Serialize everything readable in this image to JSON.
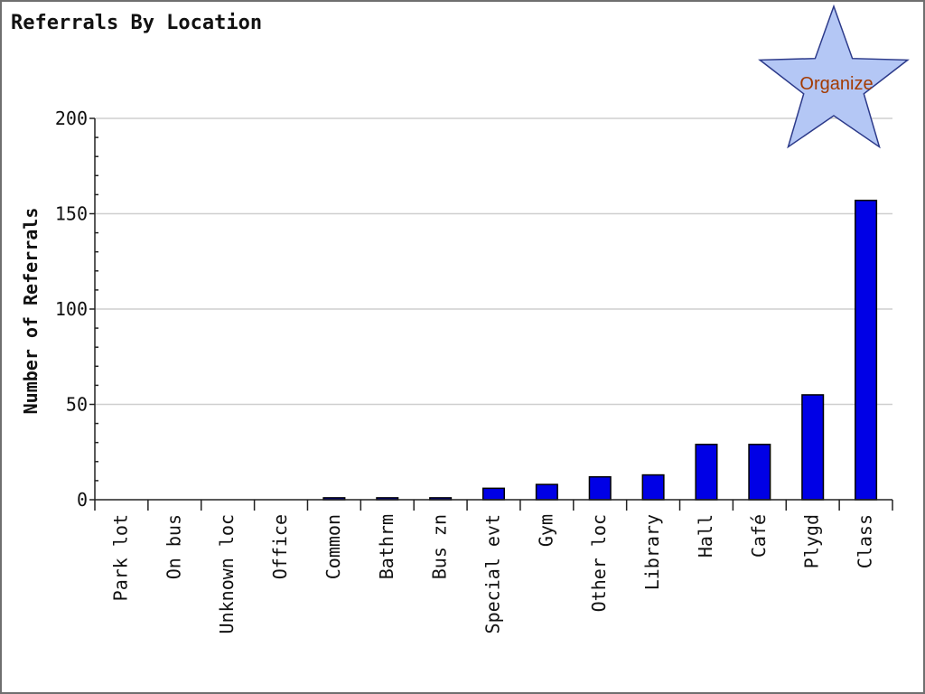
{
  "chart_data": {
    "type": "bar",
    "title": "Referrals By Location",
    "xlabel": "",
    "ylabel": "Number of Referrals",
    "ylim": [
      0,
      200
    ],
    "yticks": [
      0,
      50,
      100,
      150,
      200
    ],
    "grid": true,
    "categories": [
      "Park lot",
      "On bus",
      "Unknown loc",
      "Office",
      "Common",
      "Bathrm",
      "Bus zn",
      "Special evt",
      "Gym",
      "Other loc",
      "Library",
      "Hall",
      "Café",
      "Plygd",
      "Class"
    ],
    "values": [
      0,
      0,
      0,
      0,
      1,
      1,
      1,
      6,
      8,
      12,
      13,
      29,
      29,
      55,
      157
    ],
    "bar_color": "#0000e6"
  },
  "badge": {
    "label": "Organize",
    "icon": "star-icon",
    "fill_color": "#b4c7f5",
    "stroke_color": "#2c3a8a",
    "text_color": "#a33a00"
  }
}
